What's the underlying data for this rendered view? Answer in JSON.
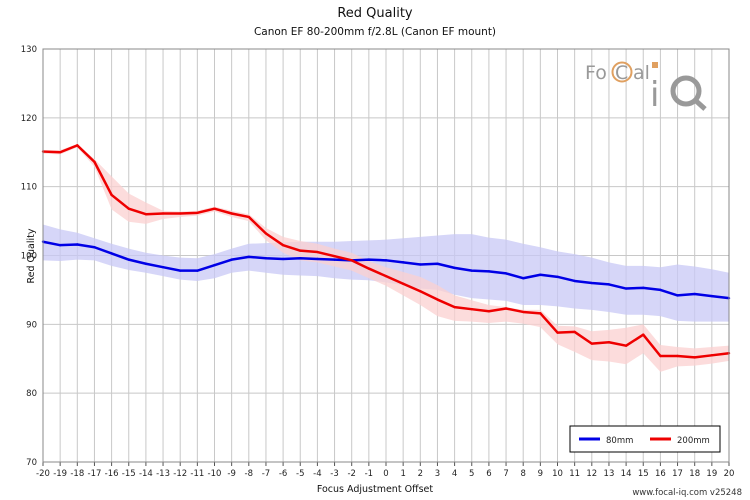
{
  "chart_data": {
    "type": "line",
    "title": "Red Quality",
    "subtitle": "Canon EF 80-200mm f/2.8L (Canon EF mount)",
    "xlabel": "Focus Adjustment Offset",
    "ylabel": "Red Quality",
    "xlim": [
      -20,
      20
    ],
    "ylim": [
      70,
      130
    ],
    "yticks": [
      70,
      80,
      90,
      100,
      110,
      120,
      130
    ],
    "x": [
      -20,
      -19,
      -18,
      -17,
      -16,
      -15,
      -14,
      -13,
      -12,
      -11,
      -10,
      -9,
      -8,
      -7,
      -6,
      -5,
      -4,
      -3,
      -2,
      -1,
      0,
      1,
      2,
      3,
      4,
      5,
      6,
      7,
      8,
      9,
      10,
      11,
      12,
      13,
      14,
      15,
      16,
      17,
      18,
      19,
      20
    ],
    "grid": true,
    "legend_position": "bottom-right",
    "series": [
      {
        "name": "80mm",
        "color": "#0000e6",
        "band_color": "#c8c8f5",
        "values": [
          102.0,
          101.5,
          101.6,
          101.2,
          100.3,
          99.4,
          98.8,
          98.3,
          97.8,
          97.8,
          98.6,
          99.4,
          99.8,
          99.6,
          99.5,
          99.6,
          99.5,
          99.4,
          99.3,
          99.4,
          99.3,
          99.0,
          98.7,
          98.8,
          98.2,
          97.8,
          97.7,
          97.4,
          96.7,
          97.2,
          96.9,
          96.3,
          96.0,
          95.8,
          95.2,
          95.3,
          95.0,
          94.2,
          94.4,
          94.1,
          93.8
        ],
        "band_upper": [
          104.5,
          103.8,
          103.3,
          102.5,
          101.7,
          101.0,
          100.4,
          100.0,
          99.7,
          99.6,
          100.2,
          101.0,
          101.7,
          101.8,
          101.9,
          102.0,
          102.0,
          102.0,
          102.1,
          102.2,
          102.3,
          102.5,
          102.7,
          102.9,
          103.1,
          103.1,
          102.6,
          102.3,
          101.7,
          101.2,
          100.6,
          100.2,
          99.7,
          99.0,
          98.5,
          98.5,
          98.3,
          98.7,
          98.4,
          98.0,
          97.5
        ],
        "band_lower": [
          99.3,
          99.2,
          99.4,
          99.3,
          98.5,
          97.9,
          97.5,
          97.0,
          96.5,
          96.3,
          96.7,
          97.5,
          97.8,
          97.5,
          97.2,
          97.1,
          97.0,
          96.7,
          96.5,
          96.4,
          96.1,
          95.7,
          95.2,
          95.0,
          94.3,
          93.8,
          93.6,
          93.4,
          92.8,
          92.8,
          92.6,
          92.3,
          92.1,
          91.8,
          91.4,
          91.4,
          91.2,
          90.5,
          90.4,
          90.4,
          90.4
        ]
      },
      {
        "name": "200mm",
        "color": "#ee0000",
        "band_color": "#fbd0d0",
        "values": [
          115.1,
          115.0,
          116.0,
          113.6,
          108.8,
          106.8,
          106.0,
          106.1,
          106.1,
          106.2,
          106.8,
          106.1,
          105.6,
          103.2,
          101.5,
          100.7,
          100.5,
          99.9,
          99.3,
          98.1,
          97.0,
          95.9,
          94.8,
          93.6,
          92.5,
          92.2,
          91.9,
          92.3,
          91.8,
          91.6,
          88.8,
          88.9,
          87.2,
          87.4,
          86.9,
          88.5,
          85.4,
          85.4,
          85.2,
          85.5,
          85.8
        ],
        "band_upper": [
          115.3,
          115.3,
          116.2,
          114.0,
          111.5,
          109.0,
          107.7,
          106.5,
          106.4,
          106.5,
          107.1,
          106.5,
          106.0,
          104.0,
          102.7,
          102.1,
          101.7,
          101.0,
          100.4,
          99.2,
          98.3,
          97.6,
          96.9,
          95.7,
          94.2,
          93.5,
          92.8,
          92.5,
          92.1,
          92.1,
          89.8,
          89.7,
          89.0,
          89.2,
          89.5,
          90.0,
          87.0,
          86.7,
          86.5,
          86.7,
          86.9
        ],
        "band_lower": [
          114.8,
          114.7,
          115.7,
          112.9,
          106.7,
          104.9,
          104.6,
          105.3,
          105.6,
          105.8,
          106.4,
          105.6,
          105.0,
          102.2,
          100.4,
          99.3,
          99.0,
          98.4,
          97.8,
          96.7,
          95.6,
          94.2,
          92.8,
          91.2,
          90.5,
          90.4,
          90.2,
          90.4,
          90.1,
          89.6,
          87.1,
          86.0,
          84.8,
          84.6,
          84.2,
          85.8,
          83.1,
          83.9,
          84.0,
          84.3,
          84.7
        ]
      }
    ]
  },
  "footer": {
    "watermark": "www.focal-iq.com v25248"
  },
  "logo": {
    "text": "FoCal iQ"
  }
}
